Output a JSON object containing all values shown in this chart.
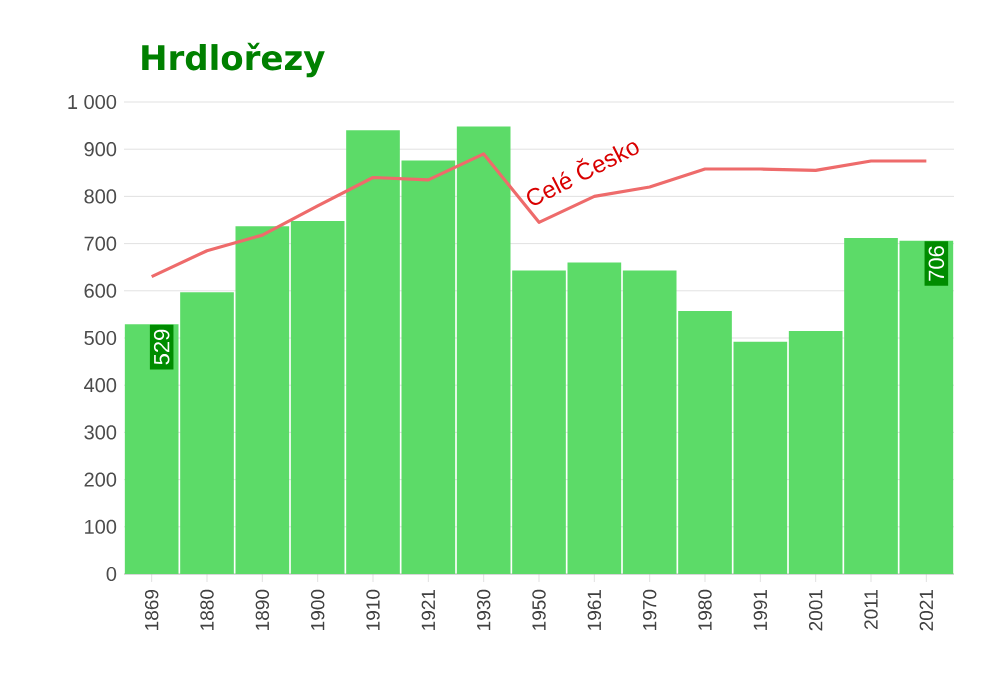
{
  "chart_data": {
    "type": "bar",
    "title": "Hrdlořezy",
    "categories": [
      "1869",
      "1880",
      "1890",
      "1900",
      "1910",
      "1921",
      "1930",
      "1950",
      "1961",
      "1970",
      "1980",
      "1991",
      "2001",
      "2011",
      "2021"
    ],
    "series": [
      {
        "color": "#5cdb68",
        "values": [
          529,
          597,
          737,
          748,
          940,
          876,
          948,
          643,
          660,
          643,
          557,
          492,
          515,
          712,
          706
        ],
        "value_labels": [
          "529",
          null,
          null,
          null,
          null,
          null,
          null,
          null,
          null,
          null,
          null,
          null,
          null,
          null,
          "706"
        ]
      },
      {
        "type": "line",
        "name": "Celé Česko",
        "color": "#ee6b6b",
        "values": [
          630,
          685,
          718,
          780,
          840,
          835,
          890,
          745,
          800,
          820,
          858,
          858,
          855,
          875,
          875
        ]
      }
    ],
    "ylim": [
      0,
      1000
    ],
    "yticks": [
      0,
      100,
      200,
      300,
      400,
      500,
      600,
      700,
      800,
      900,
      {
        "value": 1000,
        "label": "1 000"
      }
    ],
    "grid": "y"
  }
}
